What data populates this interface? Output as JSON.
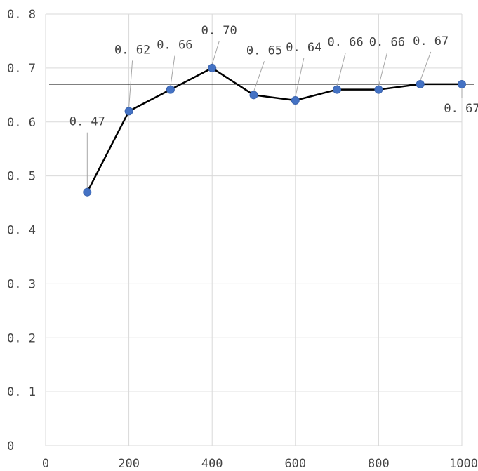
{
  "chart_data": {
    "type": "line",
    "title": "",
    "xlabel": "",
    "ylabel": "",
    "x": [
      100,
      200,
      300,
      400,
      500,
      600,
      700,
      800,
      900,
      1000
    ],
    "series": [
      {
        "values": [
          0.47,
          0.62,
          0.66,
          0.7,
          0.65,
          0.64,
          0.66,
          0.66,
          0.67,
          0.67
        ],
        "labels": [
          "0.47",
          "0.62",
          "0.66",
          "0.70",
          "0.65",
          "0.64",
          "0.66",
          "0.66",
          "0.67",
          "0.67"
        ],
        "color": "#000000",
        "marker_color": "#4472c4"
      }
    ],
    "reference_line": {
      "y": 0.67,
      "color": "#000000"
    },
    "xlim": [
      0,
      1000
    ],
    "ylim": [
      0,
      0.8
    ],
    "xticks": [
      0,
      200,
      400,
      600,
      800,
      1000
    ],
    "xtick_labels": [
      "0",
      "200",
      "400",
      "600",
      "800",
      "1000"
    ],
    "yticks": [
      0,
      0.1,
      0.2,
      0.3,
      0.4,
      0.5,
      0.6,
      0.7,
      0.8
    ],
    "ytick_labels": [
      "0",
      "0. 1",
      "0. 2",
      "0. 3",
      "0. 4",
      "0. 5",
      "0. 6",
      "0. 7",
      "0. 8"
    ],
    "grid": true,
    "legend": "none"
  }
}
